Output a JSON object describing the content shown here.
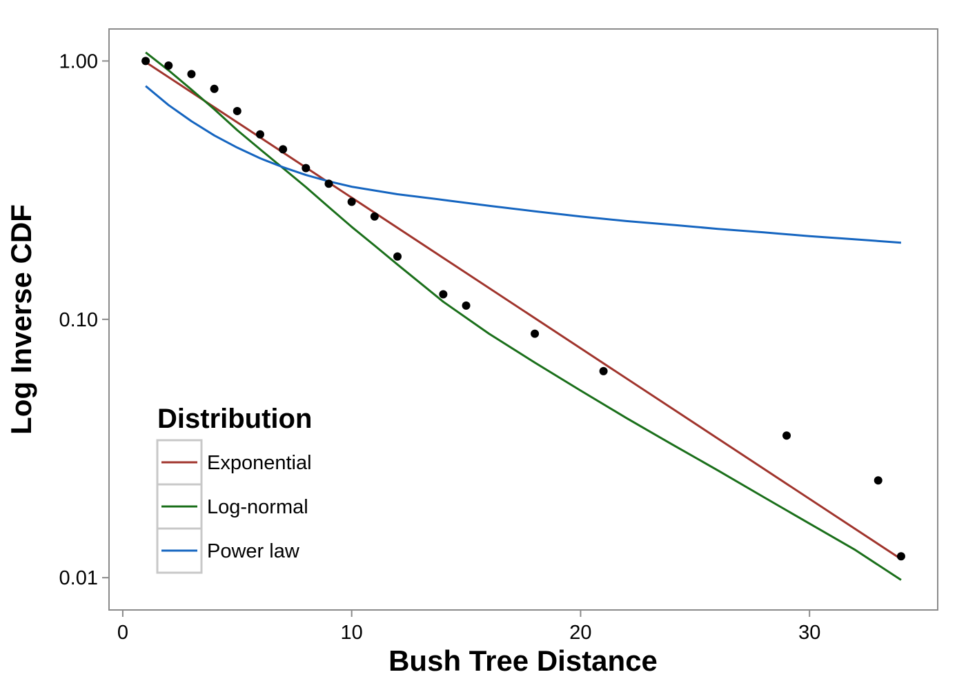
{
  "chart_data": {
    "type": "scatter",
    "xlabel": "Bush Tree Distance",
    "ylabel": "Log Inverse CDF",
    "xlim": [
      -0.6,
      35.6
    ],
    "ylim": [
      0.0075,
      1.33
    ],
    "y_scale": "log10",
    "x_ticks": [
      0,
      10,
      20,
      30
    ],
    "x_tick_labels": [
      "0",
      "10",
      "20",
      "30"
    ],
    "y_ticks": [
      0.01,
      0.1,
      1.0
    ],
    "y_tick_labels": [
      "0.01",
      "0.10",
      "1.00"
    ],
    "grid": false,
    "points": {
      "x": [
        1,
        2,
        3,
        4,
        5,
        6,
        7,
        8,
        9,
        10,
        11,
        12,
        14,
        15,
        18,
        21,
        29,
        33,
        34
      ],
      "y": [
        1.0,
        0.96,
        0.89,
        0.78,
        0.64,
        0.52,
        0.455,
        0.385,
        0.335,
        0.285,
        0.25,
        0.175,
        0.125,
        0.113,
        0.088,
        0.063,
        0.0355,
        0.0238,
        0.0121
      ]
    },
    "series": [
      {
        "name": "Exponential",
        "color": "#A0342C",
        "x": [
          1,
          34
        ],
        "y": [
          0.99,
          0.0118
        ]
      },
      {
        "name": "Log-normal",
        "color": "#1A6F1A",
        "x": [
          1,
          2,
          3,
          4,
          5,
          6,
          7,
          8,
          9,
          10,
          11,
          12,
          14,
          16,
          18,
          20,
          22,
          24,
          26,
          28,
          30,
          32,
          34
        ],
        "y": [
          1.08,
          0.92,
          0.775,
          0.65,
          0.54,
          0.455,
          0.385,
          0.325,
          0.272,
          0.228,
          0.193,
          0.163,
          0.117,
          0.088,
          0.068,
          0.053,
          0.0415,
          0.0328,
          0.026,
          0.0205,
          0.0162,
          0.0128,
          0.0098
        ]
      },
      {
        "name": "Power law",
        "color": "#1565C0",
        "x": [
          1,
          2,
          3,
          4,
          5,
          6,
          7,
          8,
          9,
          10,
          12,
          14,
          16,
          18,
          20,
          22,
          24,
          26,
          28,
          30,
          32,
          34
        ],
        "y": [
          0.8,
          0.675,
          0.585,
          0.515,
          0.462,
          0.42,
          0.388,
          0.362,
          0.342,
          0.326,
          0.305,
          0.29,
          0.275,
          0.262,
          0.25,
          0.24,
          0.232,
          0.224,
          0.217,
          0.21,
          0.204,
          0.198
        ]
      }
    ],
    "legend": {
      "title": "Distribution",
      "placement": "bottom-left",
      "entries": [
        "Exponential",
        "Log-normal",
        "Power law"
      ]
    }
  }
}
